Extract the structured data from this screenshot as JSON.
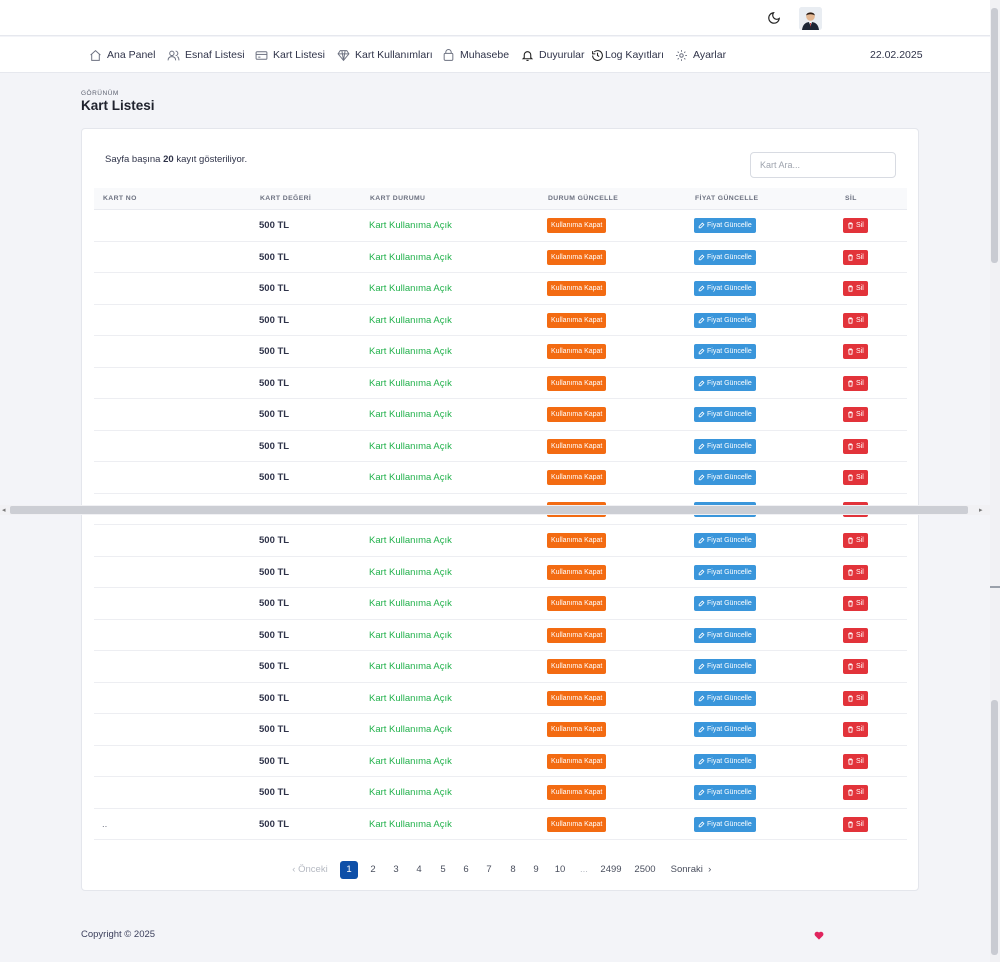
{
  "nav": {
    "items": [
      {
        "label": "Ana Panel",
        "icon": "home-icon"
      },
      {
        "label": "Esnaf Listesi",
        "icon": "users-icon"
      },
      {
        "label": "Kart Listesi",
        "icon": "card-icon"
      },
      {
        "label": "Kart Kullanımları",
        "icon": "diamond-icon"
      },
      {
        "label": "Muhasebe",
        "icon": "wallet-icon"
      },
      {
        "label": "Duyurular",
        "icon": "bell-icon"
      },
      {
        "label": "Log Kayıtları",
        "icon": "history-icon"
      },
      {
        "label": "Ayarlar",
        "icon": "gear-icon"
      }
    ],
    "date": "22.02.2025"
  },
  "page": {
    "subtitle": "GÖRÜNÜM",
    "title": "Kart Listesi"
  },
  "table": {
    "show_prefix": "Sayfa başına",
    "show_count": "20",
    "show_suffix": "kayıt gösteriliyor.",
    "search_placeholder": "Kart Ara...",
    "headers": {
      "no": "KART NO",
      "value": "KART DEĞERİ",
      "status": "KART DURUMU",
      "status_update": "DURUM GÜNCELLE",
      "price_update": "FİYAT GÜNCELLE",
      "delete": "SİL"
    },
    "rows": [
      {
        "no": "",
        "value": "500 TL",
        "status": "Kart Kullanıma Açık"
      },
      {
        "no": "",
        "value": "500 TL",
        "status": "Kart Kullanıma Açık"
      },
      {
        "no": "",
        "value": "500 TL",
        "status": "Kart Kullanıma Açık"
      },
      {
        "no": "",
        "value": "500 TL",
        "status": "Kart Kullanıma Açık"
      },
      {
        "no": "",
        "value": "500 TL",
        "status": "Kart Kullanıma Açık"
      },
      {
        "no": "",
        "value": "500 TL",
        "status": "Kart Kullanıma Açık"
      },
      {
        "no": "",
        "value": "500 TL",
        "status": "Kart Kullanıma Açık"
      },
      {
        "no": "",
        "value": "500 TL",
        "status": "Kart Kullanıma Açık"
      },
      {
        "no": "",
        "value": "500 TL",
        "status": "Kart Kullanıma Açık"
      },
      {
        "no": "",
        "value": "",
        "status": ""
      },
      {
        "no": "",
        "value": "500 TL",
        "status": "Kart Kullanıma Açık"
      },
      {
        "no": "",
        "value": "500 TL",
        "status": "Kart Kullanıma Açık"
      },
      {
        "no": "",
        "value": "500 TL",
        "status": "Kart Kullanıma Açık"
      },
      {
        "no": "",
        "value": "500 TL",
        "status": "Kart Kullanıma Açık"
      },
      {
        "no": "",
        "value": "500 TL",
        "status": "Kart Kullanıma Açık"
      },
      {
        "no": "",
        "value": "500 TL",
        "status": "Kart Kullanıma Açık"
      },
      {
        "no": "",
        "value": "500 TL",
        "status": "Kart Kullanıma Açık"
      },
      {
        "no": "",
        "value": "500 TL",
        "status": "Kart Kullanıma Açık"
      },
      {
        "no": "",
        "value": "500 TL",
        "status": "Kart Kullanıma Açık"
      },
      {
        "no": "..",
        "value": "500 TL",
        "status": "Kart Kullanıma Açık"
      }
    ],
    "buttons": {
      "close": "Kullanıma Kapat",
      "price": "Fiyat Güncelle",
      "delete": "Sil"
    }
  },
  "pagination": {
    "prev": "Önceki",
    "pages": [
      "1",
      "2",
      "3",
      "4",
      "5",
      "6",
      "7",
      "8",
      "9",
      "10"
    ],
    "active_page": "1",
    "ellipsis": "...",
    "last_pages": [
      "2499",
      "2500"
    ],
    "next": "Sonraki"
  },
  "footer": {
    "copyright": "Copyright © 2025"
  },
  "colors": {
    "accent": "#0d4fa8",
    "status_open": "#22b14c",
    "btn_close": "#f36b12",
    "btn_price": "#3a96db",
    "btn_delete": "#e2333a"
  }
}
